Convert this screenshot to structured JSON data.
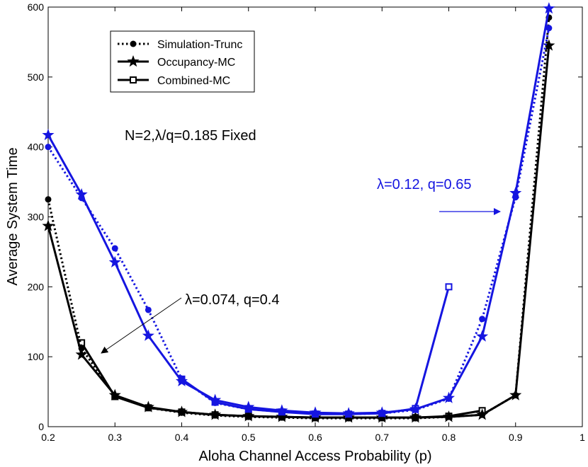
{
  "chart_data": {
    "type": "line",
    "title": "",
    "xlabel": "Aloha Channel Access Probability (p)",
    "ylabel": "Average System Time",
    "xlim": [
      0.2,
      1.0
    ],
    "ylim": [
      0,
      600
    ],
    "xticks": [
      "0.2",
      "0.3",
      "0.4",
      "0.5",
      "0.6",
      "0.7",
      "0.8",
      "0.9",
      "1"
    ],
    "xtick_values": [
      0.2,
      0.3,
      0.4,
      0.5,
      0.6,
      0.7,
      0.8,
      0.9,
      1.0
    ],
    "yticks": [
      "0",
      "100",
      "200",
      "300",
      "400",
      "500",
      "600"
    ],
    "ytick_values": [
      0,
      100,
      200,
      300,
      400,
      500,
      600
    ],
    "grid": false,
    "legend": {
      "position": "top-left",
      "entries": [
        "Simulation-Trunc",
        "Occupancy-MC",
        "Combined-MC"
      ]
    },
    "colors": {
      "black": "#000000",
      "blue": "#1515e0"
    },
    "series": [
      {
        "name": "Simulation-Trunc",
        "group": "λ=0.074, q=0.4",
        "color": "black",
        "style": "dotted",
        "marker": "circle",
        "x": [
          0.2,
          0.25,
          0.3,
          0.35,
          0.4,
          0.45,
          0.5,
          0.55,
          0.6,
          0.65,
          0.7,
          0.75,
          0.8,
          0.85,
          0.9,
          0.95
        ],
        "y": [
          325,
          112,
          44,
          27,
          20,
          16,
          14,
          13,
          12,
          12,
          12,
          12,
          14,
          17,
          45,
          585
        ]
      },
      {
        "name": "Occupancy-MC",
        "group": "λ=0.074, q=0.4",
        "color": "black",
        "style": "solid",
        "marker": "star",
        "x": [
          0.2,
          0.25,
          0.3,
          0.35,
          0.4,
          0.45,
          0.5,
          0.55,
          0.6,
          0.65,
          0.7,
          0.75,
          0.8,
          0.85,
          0.9,
          0.95
        ],
        "y": [
          287,
          103,
          45,
          28,
          21,
          17,
          15,
          14,
          13,
          13,
          13,
          13,
          14,
          17,
          45,
          545
        ]
      },
      {
        "name": "Combined-MC",
        "group": "λ=0.074, q=0.4",
        "color": "black",
        "style": "solid",
        "marker": "square",
        "x": [
          0.25,
          0.3,
          0.35,
          0.4,
          0.45,
          0.5,
          0.55,
          0.6,
          0.65,
          0.7,
          0.75,
          0.8,
          0.85
        ],
        "y": [
          120,
          43,
          27,
          21,
          17,
          15,
          14,
          13,
          13,
          13,
          13,
          15,
          23
        ]
      },
      {
        "name": "Simulation-Trunc",
        "group": "λ=0.12, q=0.65",
        "color": "blue",
        "style": "dotted",
        "marker": "circle",
        "x": [
          0.2,
          0.25,
          0.3,
          0.35,
          0.4,
          0.45,
          0.5,
          0.55,
          0.6,
          0.65,
          0.7,
          0.75,
          0.8,
          0.85,
          0.9,
          0.95
        ],
        "y": [
          400,
          327,
          255,
          167,
          68,
          34,
          25,
          21,
          19,
          18,
          19,
          24,
          40,
          154,
          328,
          570
        ]
      },
      {
        "name": "Occupancy-MC",
        "group": "λ=0.12, q=0.65",
        "color": "blue",
        "style": "solid",
        "marker": "star",
        "x": [
          0.2,
          0.25,
          0.3,
          0.35,
          0.4,
          0.45,
          0.5,
          0.55,
          0.6,
          0.65,
          0.7,
          0.75,
          0.8,
          0.85,
          0.9,
          0.95
        ],
        "y": [
          417,
          332,
          235,
          130,
          65,
          38,
          28,
          23,
          20,
          19,
          20,
          25,
          41,
          129,
          334,
          598
        ]
      },
      {
        "name": "Combined-MC",
        "group": "λ=0.12, q=0.65",
        "color": "blue",
        "style": "solid",
        "marker": "square",
        "x": [
          0.4,
          0.45,
          0.5,
          0.55,
          0.6,
          0.65,
          0.7,
          0.75,
          0.8
        ],
        "y": [
          68,
          35,
          25,
          21,
          18,
          18,
          19,
          26,
          200
        ]
      }
    ],
    "annotations": [
      {
        "text": "N=2,λ/q=0.185 Fixed",
        "color": "black"
      },
      {
        "text": "λ=0.074, q=0.4",
        "color": "black",
        "arrow_to": [
          0.275,
          100
        ]
      },
      {
        "text": "λ=0.12, q=0.65",
        "color": "blue",
        "arrow_to": [
          0.865,
          305
        ]
      }
    ]
  }
}
